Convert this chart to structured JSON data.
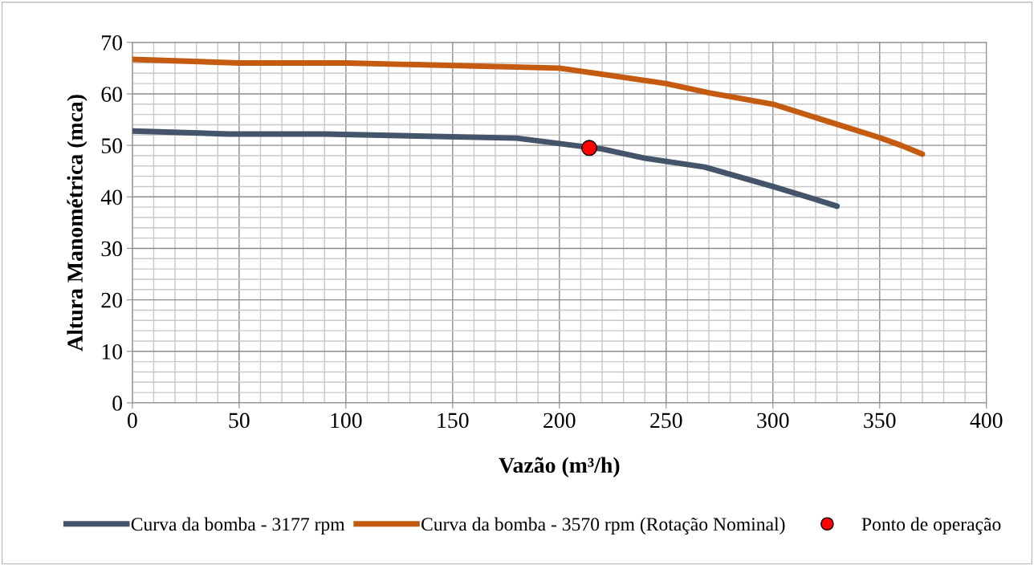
{
  "chart_data": {
    "type": "line",
    "xlabel": "Vazão (m³/h)",
    "ylabel": "Altura Manométrica (mca)",
    "xlim": [
      0,
      400
    ],
    "xticks": [
      0,
      50,
      100,
      150,
      200,
      250,
      300,
      350,
      400
    ],
    "ylim": [
      0,
      70
    ],
    "yticks": [
      0,
      10,
      20,
      30,
      40,
      50,
      60,
      70
    ],
    "grid": true,
    "legend": "bottom",
    "marker": "none",
    "series": [
      {
        "name": "Curva da bomba - 3177 rpm",
        "color": "#44546a",
        "x": [
          0,
          45,
          90,
          180,
          220,
          240,
          268,
          300,
          320,
          330
        ],
        "values": [
          52.8,
          52.2,
          52.2,
          51.4,
          49.3,
          47.5,
          45.8,
          42,
          39.5,
          38.2
        ]
      },
      {
        "name": "Curva da bomba - 3570 rpm (Rotação Nominal)",
        "color": "#c55a11",
        "x": [
          0,
          50,
          100,
          200,
          250,
          270,
          300,
          350,
          360,
          370
        ],
        "values": [
          66.7,
          66,
          66,
          65,
          62,
          60.2,
          58,
          51.5,
          50,
          48.3
        ]
      },
      {
        "name": "Ponto de operação",
        "type": "scatter",
        "marker": "circle",
        "color": "#ff0000",
        "x": [
          214
        ],
        "values": [
          49.5
        ]
      }
    ]
  }
}
